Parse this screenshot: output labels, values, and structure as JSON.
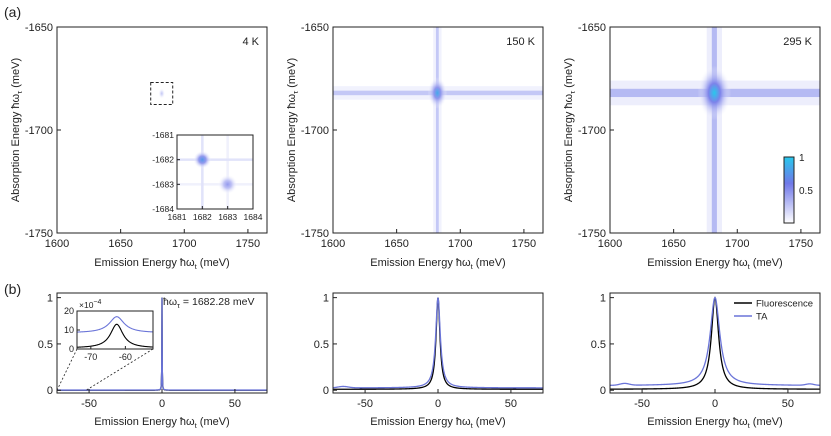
{
  "figure": {
    "panel_a_label": "(a)",
    "panel_b_label": "(b)"
  },
  "chart_data": [
    {
      "id": "a1",
      "type": "heatmap",
      "panel": "(a)",
      "annotation": "4 K",
      "xlabel": "Emission Energy ħω",
      "xlabel_sub": "t",
      "xlabel_unit": " (meV)",
      "ylabel": "Absorption Energy ħω",
      "ylabel_sub": "τ",
      "ylabel_unit": " (meV)",
      "xlim": [
        1600,
        1765
      ],
      "ylim": [
        -1750,
        -1650
      ],
      "xticks": [
        1600,
        1650,
        1700,
        1750
      ],
      "yticks": [
        -1650,
        -1700,
        -1750
      ],
      "peaks": [
        {
          "x": 1682.28,
          "y": -1682.28,
          "amp": 0.25,
          "arm": 0.0,
          "arm_width": 1.5,
          "core": 1.2
        }
      ],
      "inset": {
        "xlim": [
          1681,
          1684
        ],
        "ylim": [
          -1684,
          -1681
        ],
        "xticks": [
          1681,
          1682,
          1683,
          1684
        ],
        "yticks": [
          -1681,
          -1682,
          -1683,
          -1684
        ],
        "peaks": [
          {
            "x": 1682.0,
            "y": -1682.0,
            "amp": 0.75,
            "arm": 0.25,
            "arm_width": 0.1,
            "core": 0.12
          },
          {
            "x": 1683.0,
            "y": -1683.0,
            "amp": 0.45,
            "arm": 0.12,
            "arm_width": 0.1,
            "core": 0.13
          }
        ]
      }
    },
    {
      "id": "a2",
      "type": "heatmap",
      "panel": "(a)",
      "annotation": "150 K",
      "xlabel": "Emission Energy ħω",
      "xlabel_sub": "t",
      "xlabel_unit": " (meV)",
      "ylabel": "Absorption Energy ħω",
      "ylabel_sub": "τ",
      "ylabel_unit": " (meV)",
      "xlim": [
        1600,
        1765
      ],
      "ylim": [
        -1750,
        -1650
      ],
      "xticks": [
        1600,
        1650,
        1700,
        1750
      ],
      "yticks": [
        -1650,
        -1700,
        -1750
      ],
      "peaks": [
        {
          "x": 1682,
          "y": -1682,
          "amp": 0.85,
          "arm": 0.4,
          "arm_width": 2.2,
          "core": 3.5
        }
      ]
    },
    {
      "id": "a3",
      "type": "heatmap",
      "panel": "(a)",
      "annotation": "295 K",
      "xlabel": "Emission Energy ħω",
      "xlabel_sub": "t",
      "xlabel_unit": " (meV)",
      "ylabel": "Absorption Energy ħω",
      "ylabel_sub": "τ",
      "ylabel_unit": " (meV)",
      "xlim": [
        1600,
        1765
      ],
      "ylim": [
        -1750,
        -1650
      ],
      "xticks": [
        1600,
        1650,
        1700,
        1750
      ],
      "yticks": [
        -1650,
        -1700,
        -1750
      ],
      "peaks": [
        {
          "x": 1682,
          "y": -1682,
          "amp": 1.0,
          "arm": 0.5,
          "arm_width": 4.0,
          "core": 6.0
        }
      ],
      "colorbar": {
        "min": 0,
        "max": 1,
        "ticks": [
          0.5,
          1
        ],
        "tick_labels": [
          "0.5",
          "1"
        ]
      }
    },
    {
      "id": "b1",
      "type": "line",
      "panel": "(b)",
      "annotation": "ħω",
      "annotation_sub": "τ",
      "annotation_value": " = 1682.28 meV",
      "xlabel": "Emission Energy ħω",
      "xlabel_sub": "t",
      "xlabel_unit": " (meV)",
      "xlim": [
        -72,
        72
      ],
      "ylim": [
        -0.03,
        1.05
      ],
      "xticks": [
        -50,
        0,
        50
      ],
      "yticks": [
        0,
        0.5,
        1
      ],
      "series": [
        {
          "name": "Fluorescence",
          "color": "#000000",
          "center": 0,
          "width": 0.12,
          "amp": 1.0,
          "baseline": 0.0
        },
        {
          "name": "TA",
          "color": "#6a74d8",
          "center": 0,
          "width": 0.12,
          "amp": 1.0,
          "baseline": 0.002
        }
      ],
      "inset": {
        "xlim": [
          -74,
          -52
        ],
        "ylim": [
          0,
          20
        ],
        "xticks": [
          -70,
          -60
        ],
        "yticks": [
          0,
          10,
          20
        ],
        "scale_label": "×10",
        "scale_exp": "−4",
        "series": [
          {
            "name": "Fluorescence",
            "color": "#000000",
            "center": -62.5,
            "width": 2.2,
            "amp": 12.5,
            "baseline": 0.5
          },
          {
            "name": "TA",
            "color": "#6a74d8",
            "center": -62.5,
            "width": 2.6,
            "amp": 8.5,
            "baseline": 8.5
          }
        ]
      }
    },
    {
      "id": "b2",
      "type": "line",
      "panel": "(b)",
      "xlabel": "Emission Energy ħω",
      "xlabel_sub": "t",
      "xlabel_unit": " (meV)",
      "xlim": [
        -72,
        72
      ],
      "ylim": [
        -0.03,
        1.05
      ],
      "xticks": [
        -50,
        0,
        50
      ],
      "yticks": [
        0,
        0.5,
        1
      ],
      "series": [
        {
          "name": "Fluorescence",
          "color": "#000000",
          "center": 0,
          "width": 1.6,
          "amp": 1.0,
          "baseline": 0.01
        },
        {
          "name": "TA",
          "color": "#6a74d8",
          "center": 0,
          "width": 1.9,
          "amp": 1.0,
          "baseline": 0.025
        }
      ]
    },
    {
      "id": "b3",
      "type": "line",
      "panel": "(b)",
      "xlabel": "Emission Energy ħω",
      "xlabel_sub": "t",
      "xlabel_unit": " (meV)",
      "xlim": [
        -72,
        72
      ],
      "ylim": [
        -0.03,
        1.05
      ],
      "xticks": [
        -50,
        0,
        50
      ],
      "yticks": [
        0,
        0.5,
        1
      ],
      "legend": {
        "position": "top-right"
      },
      "series": [
        {
          "name": "Fluorescence",
          "color": "#000000",
          "center": 0,
          "width": 3.0,
          "amp": 1.0,
          "baseline": 0.01
        },
        {
          "name": "TA",
          "color": "#6a74d8",
          "center": 0,
          "width": 4.0,
          "amp": 1.0,
          "baseline": 0.05
        }
      ]
    }
  ]
}
